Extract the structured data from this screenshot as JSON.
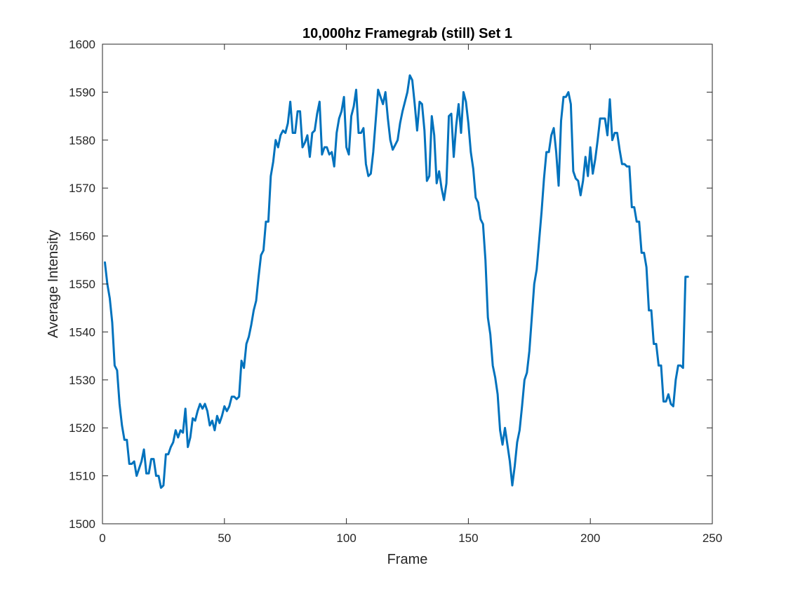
{
  "chart_data": {
    "type": "line",
    "title": "10,000hz Framegrab (still) Set 1",
    "xlabel": "Frame",
    "ylabel": "Average Intensity",
    "xlim": [
      0,
      250
    ],
    "ylim": [
      1500,
      1600
    ],
    "xticks": [
      0,
      50,
      100,
      150,
      200,
      250
    ],
    "yticks": [
      1500,
      1510,
      1520,
      1530,
      1540,
      1550,
      1560,
      1570,
      1580,
      1590,
      1600
    ],
    "xtick_labels": [
      "0",
      "50",
      "100",
      "150",
      "200",
      "250"
    ],
    "ytick_labels": [
      "1500",
      "1510",
      "1520",
      "1530",
      "1540",
      "1550",
      "1560",
      "1570",
      "1580",
      "1590",
      "1600"
    ],
    "grid": false,
    "legend": "none",
    "line_color": "#0072BD",
    "series": [
      {
        "x": [
          1,
          2,
          3,
          4,
          5,
          6,
          7,
          8,
          9,
          10,
          11,
          12,
          13,
          14,
          15,
          16,
          17,
          18,
          19,
          20,
          21,
          22,
          23,
          24,
          25,
          26,
          27,
          28,
          29,
          30,
          31,
          32,
          33,
          34,
          35,
          36,
          37,
          38,
          39,
          40,
          41,
          42,
          43,
          44,
          45,
          46,
          47,
          48,
          49,
          50,
          51,
          52,
          53,
          54,
          55,
          56,
          57,
          58,
          59,
          60,
          61,
          62,
          63,
          64,
          65,
          66,
          67,
          68,
          69,
          70,
          71,
          72,
          73,
          74,
          75,
          76,
          77,
          78,
          79,
          80,
          81,
          82,
          83,
          84,
          85,
          86,
          87,
          88,
          89,
          90,
          91,
          92,
          93,
          94,
          95,
          96,
          97,
          98,
          99,
          100,
          101,
          102,
          103,
          104,
          105,
          106,
          107,
          108,
          109,
          110,
          111,
          112,
          113,
          114,
          115,
          116,
          117,
          118,
          119,
          120,
          121,
          122,
          123,
          124,
          125,
          126,
          127,
          128,
          129,
          130,
          131,
          132,
          133,
          134,
          135,
          136,
          137,
          138,
          139,
          140,
          141,
          142,
          143,
          144,
          145,
          146,
          147,
          148,
          149,
          150,
          151,
          152,
          153,
          154,
          155,
          156,
          157,
          158,
          159,
          160,
          161,
          162,
          163,
          164,
          165,
          166,
          167,
          168,
          169,
          170,
          171,
          172,
          173,
          174,
          175,
          176,
          177,
          178,
          179,
          180,
          181,
          182,
          183,
          184,
          185,
          186,
          187,
          188,
          189,
          190,
          191,
          192,
          193,
          194,
          195,
          196,
          197,
          198,
          199,
          200,
          201,
          202,
          203,
          204,
          205,
          206,
          207,
          208,
          209,
          210,
          211,
          212,
          213,
          214,
          215,
          216,
          217,
          218,
          219,
          220,
          221,
          222,
          223,
          224,
          225,
          226,
          227,
          228,
          229,
          230,
          231,
          232,
          233,
          234,
          235,
          236,
          237,
          238,
          239,
          240
        ],
        "values": [
          1554.5,
          1550,
          1547,
          1542,
          1533,
          1532,
          1525,
          1520.5,
          1517.5,
          1517.5,
          1512.5,
          1512.5,
          1513,
          1510,
          1511.5,
          1513,
          1515.5,
          1510.5,
          1510.5,
          1513.5,
          1513.5,
          1510,
          1510,
          1507.5,
          1508,
          1514.5,
          1514.5,
          1516,
          1517,
          1519.5,
          1518,
          1519.5,
          1519,
          1524,
          1516,
          1518,
          1522,
          1521.5,
          1523.5,
          1525,
          1524,
          1525,
          1523.5,
          1520.5,
          1521.5,
          1519.5,
          1522.5,
          1521,
          1522.5,
          1524.5,
          1523.5,
          1524.5,
          1526.5,
          1526.5,
          1526,
          1526.5,
          1534,
          1532.5,
          1537.5,
          1539,
          1541.5,
          1544.5,
          1546.5,
          1551.5,
          1556,
          1557,
          1563,
          1563,
          1572.5,
          1575.5,
          1580,
          1578.5,
          1581,
          1582,
          1581.5,
          1583.5,
          1588,
          1581.5,
          1581.5,
          1586,
          1586,
          1578.5,
          1579.5,
          1581,
          1576.5,
          1581.5,
          1582,
          1585.5,
          1588,
          1577,
          1578.5,
          1578.5,
          1577,
          1577.5,
          1574.5,
          1581.5,
          1584.5,
          1586,
          1589,
          1578.5,
          1577,
          1585,
          1587,
          1590.5,
          1581.5,
          1581.5,
          1582.5,
          1575,
          1572.5,
          1573,
          1577.5,
          1584,
          1590.5,
          1589,
          1587.5,
          1590,
          1584.5,
          1580,
          1578,
          1579,
          1580,
          1583.5,
          1586,
          1588,
          1590,
          1593.5,
          1592.5,
          1587.5,
          1582,
          1588,
          1587.5,
          1582,
          1571.5,
          1572.5,
          1585,
          1581,
          1571,
          1573.5,
          1570,
          1567.5,
          1571,
          1585,
          1585.5,
          1576.5,
          1583,
          1587.5,
          1581.5,
          1590,
          1588,
          1583.5,
          1577.5,
          1574,
          1568,
          1567,
          1563.5,
          1562.5,
          1555,
          1543,
          1539.5,
          1533,
          1530.5,
          1527,
          1519.5,
          1516.5,
          1520,
          1516.5,
          1513,
          1508,
          1512,
          1517,
          1519.5,
          1524.5,
          1530,
          1531.5,
          1536,
          1543,
          1550,
          1553,
          1559,
          1565,
          1572,
          1577.5,
          1577.5,
          1581,
          1582.5,
          1577.5,
          1570.5,
          1584,
          1589,
          1589,
          1590,
          1587.5,
          1573.5,
          1572,
          1571.5,
          1568.5,
          1571.5,
          1576.5,
          1572.5,
          1578.5,
          1573,
          1576,
          1580,
          1584.5,
          1584.5,
          1584.5,
          1581,
          1588.5,
          1580,
          1581.5,
          1581.5,
          1578,
          1575,
          1575,
          1574.5,
          1574.5,
          1566,
          1566,
          1563,
          1563,
          1556.5,
          1556.5,
          1553.5,
          1544.5,
          1544.5,
          1537.5,
          1537.5,
          1533,
          1533,
          1525.5,
          1525.5,
          1527,
          1525,
          1524.5,
          1530,
          1533,
          1533,
          1532.5,
          1551.5,
          1551.5
        ]
      }
    ]
  }
}
